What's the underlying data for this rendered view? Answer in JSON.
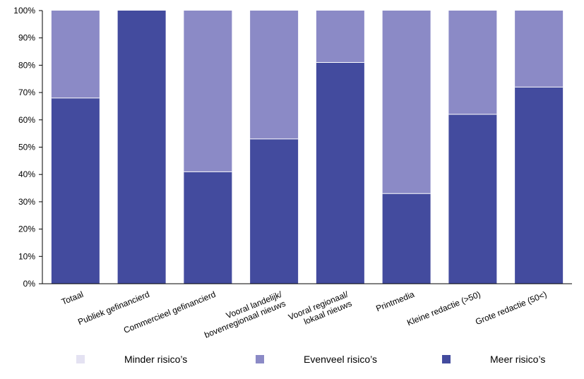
{
  "chart_data": {
    "type": "bar",
    "stacked": true,
    "stack_mode": "percent",
    "title": "",
    "xlabel": "",
    "ylabel": "",
    "ylim": [
      0,
      100
    ],
    "yticks": [
      "0%",
      "10%",
      "20%",
      "30%",
      "40%",
      "50%",
      "60%",
      "70%",
      "80%",
      "90%",
      "100%"
    ],
    "categories": [
      "Totaal",
      "Publiek gefinancierd",
      "Commercieel gefinancierd",
      "Vooral landelijk/\nbovenregionaal nieuws",
      "Vooral regionaal/\nlokaal nieuws",
      "Printmedia",
      "Kleine redactie (>50)",
      "Grote redactie (50<)"
    ],
    "series": [
      {
        "name": "Minder risico’s",
        "color": "#e4e2f2",
        "values": [
          0,
          0,
          0,
          0,
          0,
          0,
          0,
          0
        ]
      },
      {
        "name": "Evenveel risico’s",
        "color": "#8b8ac6",
        "values": [
          32,
          0,
          59,
          47,
          19,
          67,
          38,
          28
        ]
      },
      {
        "name": "Meer risico’s",
        "color": "#434b9e",
        "values": [
          68,
          100,
          41,
          53,
          81,
          33,
          62,
          72
        ]
      }
    ],
    "stack_order": [
      "Meer risico’s",
      "Evenveel risico’s",
      "Minder risico’s"
    ],
    "grid": false,
    "legend_position": "bottom"
  }
}
